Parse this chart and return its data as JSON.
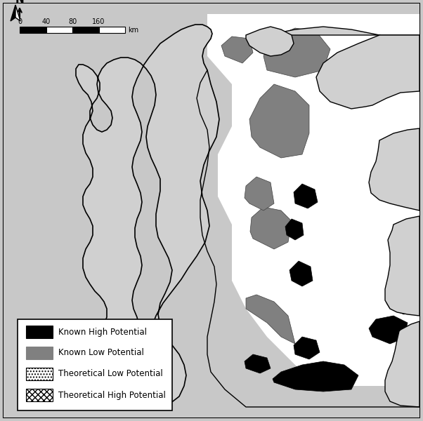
{
  "title": "",
  "legend_entries": [
    {
      "label": "Known High Potential",
      "facecolor": "#000000",
      "edgecolor": "#000000",
      "hatch": ""
    },
    {
      "label": "Known Low Potential",
      "facecolor": "#808080",
      "edgecolor": "#808080",
      "hatch": ""
    },
    {
      "label": "Theoretical Low Potential",
      "facecolor": "#ffffff",
      "edgecolor": "#000000",
      "hatch": "...."
    },
    {
      "label": "Theoretical High Potential",
      "facecolor": "#ffffff",
      "edgecolor": "#000000",
      "hatch": "xxxx"
    }
  ],
  "background_color": "#d3d3d3",
  "sea_color": "#ffffff",
  "ireland_color": "#d3d3d3",
  "border_color": "#000000",
  "fig_width": 6.02,
  "fig_height": 6.0,
  "scale_bar_ticks": [
    0,
    40,
    80,
    160
  ],
  "scale_bar_unit": "km"
}
